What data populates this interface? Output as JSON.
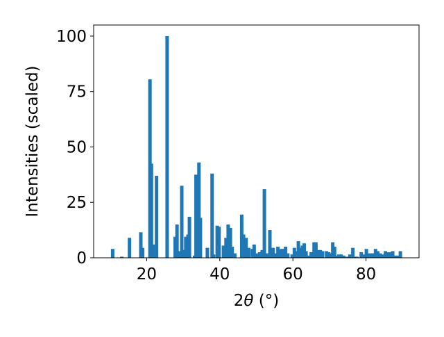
{
  "chart_data": {
    "type": "bar",
    "title": "",
    "xlabel_prefix": "2",
    "xlabel_symbol": "θ",
    "xlabel_suffix": " (°)",
    "ylabel": "Intensities (scaled)",
    "xlim": [
      5.5,
      94.5
    ],
    "ylim": [
      0,
      105
    ],
    "xticks": [
      20,
      40,
      60,
      80
    ],
    "yticks": [
      0,
      25,
      50,
      75,
      100
    ],
    "bar_width": 0.5,
    "bar_color": "#1f77b4",
    "grid": false,
    "legend": "none",
    "x": [
      10.7,
      13.2,
      15.3,
      18.4,
      18.9,
      20.9,
      21.3,
      21.8,
      22.7,
      25.6,
      27.8,
      28.3,
      29.1,
      29.6,
      30.1,
      30.7,
      31.3,
      31.7,
      33.1,
      33.5,
      33.9,
      34.3,
      34.7,
      36.6,
      37.9,
      38.3,
      39.3,
      39.8,
      41.0,
      41.7,
      42.3,
      42.9,
      43.4,
      44.1,
      46.0,
      46.5,
      47.2,
      47.9,
      48.9,
      49.4,
      50.0,
      50.9,
      51.6,
      52.2,
      52.8,
      53.7,
      54.6,
      55.3,
      55.9,
      56.4,
      56.9,
      57.5,
      58.0,
      58.6,
      59.8,
      60.4,
      60.9,
      61.5,
      62.0,
      62.6,
      63.1,
      63.6,
      64.1,
      65.0,
      65.8,
      66.3,
      66.9,
      67.5,
      68.1,
      69.2,
      69.8,
      70.3,
      70.9,
      71.4,
      72.0,
      72.6,
      73.2,
      73.9,
      74.9,
      75.6,
      76.4,
      77.0,
      77.5,
      78.7,
      79.3,
      80.1,
      80.6,
      81.3,
      81.9,
      82.6,
      83.2,
      83.9,
      84.6,
      85.3,
      86.0,
      86.7,
      87.3,
      88.0,
      88.7,
      89.4
    ],
    "values": [
      4,
      0.5,
      9,
      11.5,
      4.5,
      80.5,
      42.5,
      6,
      37,
      100,
      9.5,
      15,
      3,
      32.5,
      3.5,
      9.5,
      10.5,
      18.5,
      1,
      37.5,
      25.5,
      43,
      18,
      4.5,
      38,
      1.5,
      14.5,
      14,
      5.5,
      9,
      15,
      13.5,
      5,
      2,
      19.5,
      10.5,
      9,
      4.5,
      4,
      6,
      2,
      2.5,
      3.5,
      31,
      2,
      12.5,
      4.5,
      2,
      5,
      3.5,
      4,
      4,
      5,
      2,
      1.5,
      4.5,
      3,
      7.5,
      4.5,
      5.5,
      6.5,
      3,
      1,
      2.5,
      7,
      7,
      3.5,
      3.5,
      3,
      3,
      2.5,
      2,
      7,
      5,
      1,
      1.5,
      1.5,
      1,
      0.5,
      1.5,
      4.5,
      0.5,
      0.5,
      2.5,
      1.5,
      4,
      2,
      2,
      2,
      4,
      3,
      2,
      1.5,
      3,
      2.5,
      2.5,
      3,
      1,
      1,
      3
    ]
  }
}
